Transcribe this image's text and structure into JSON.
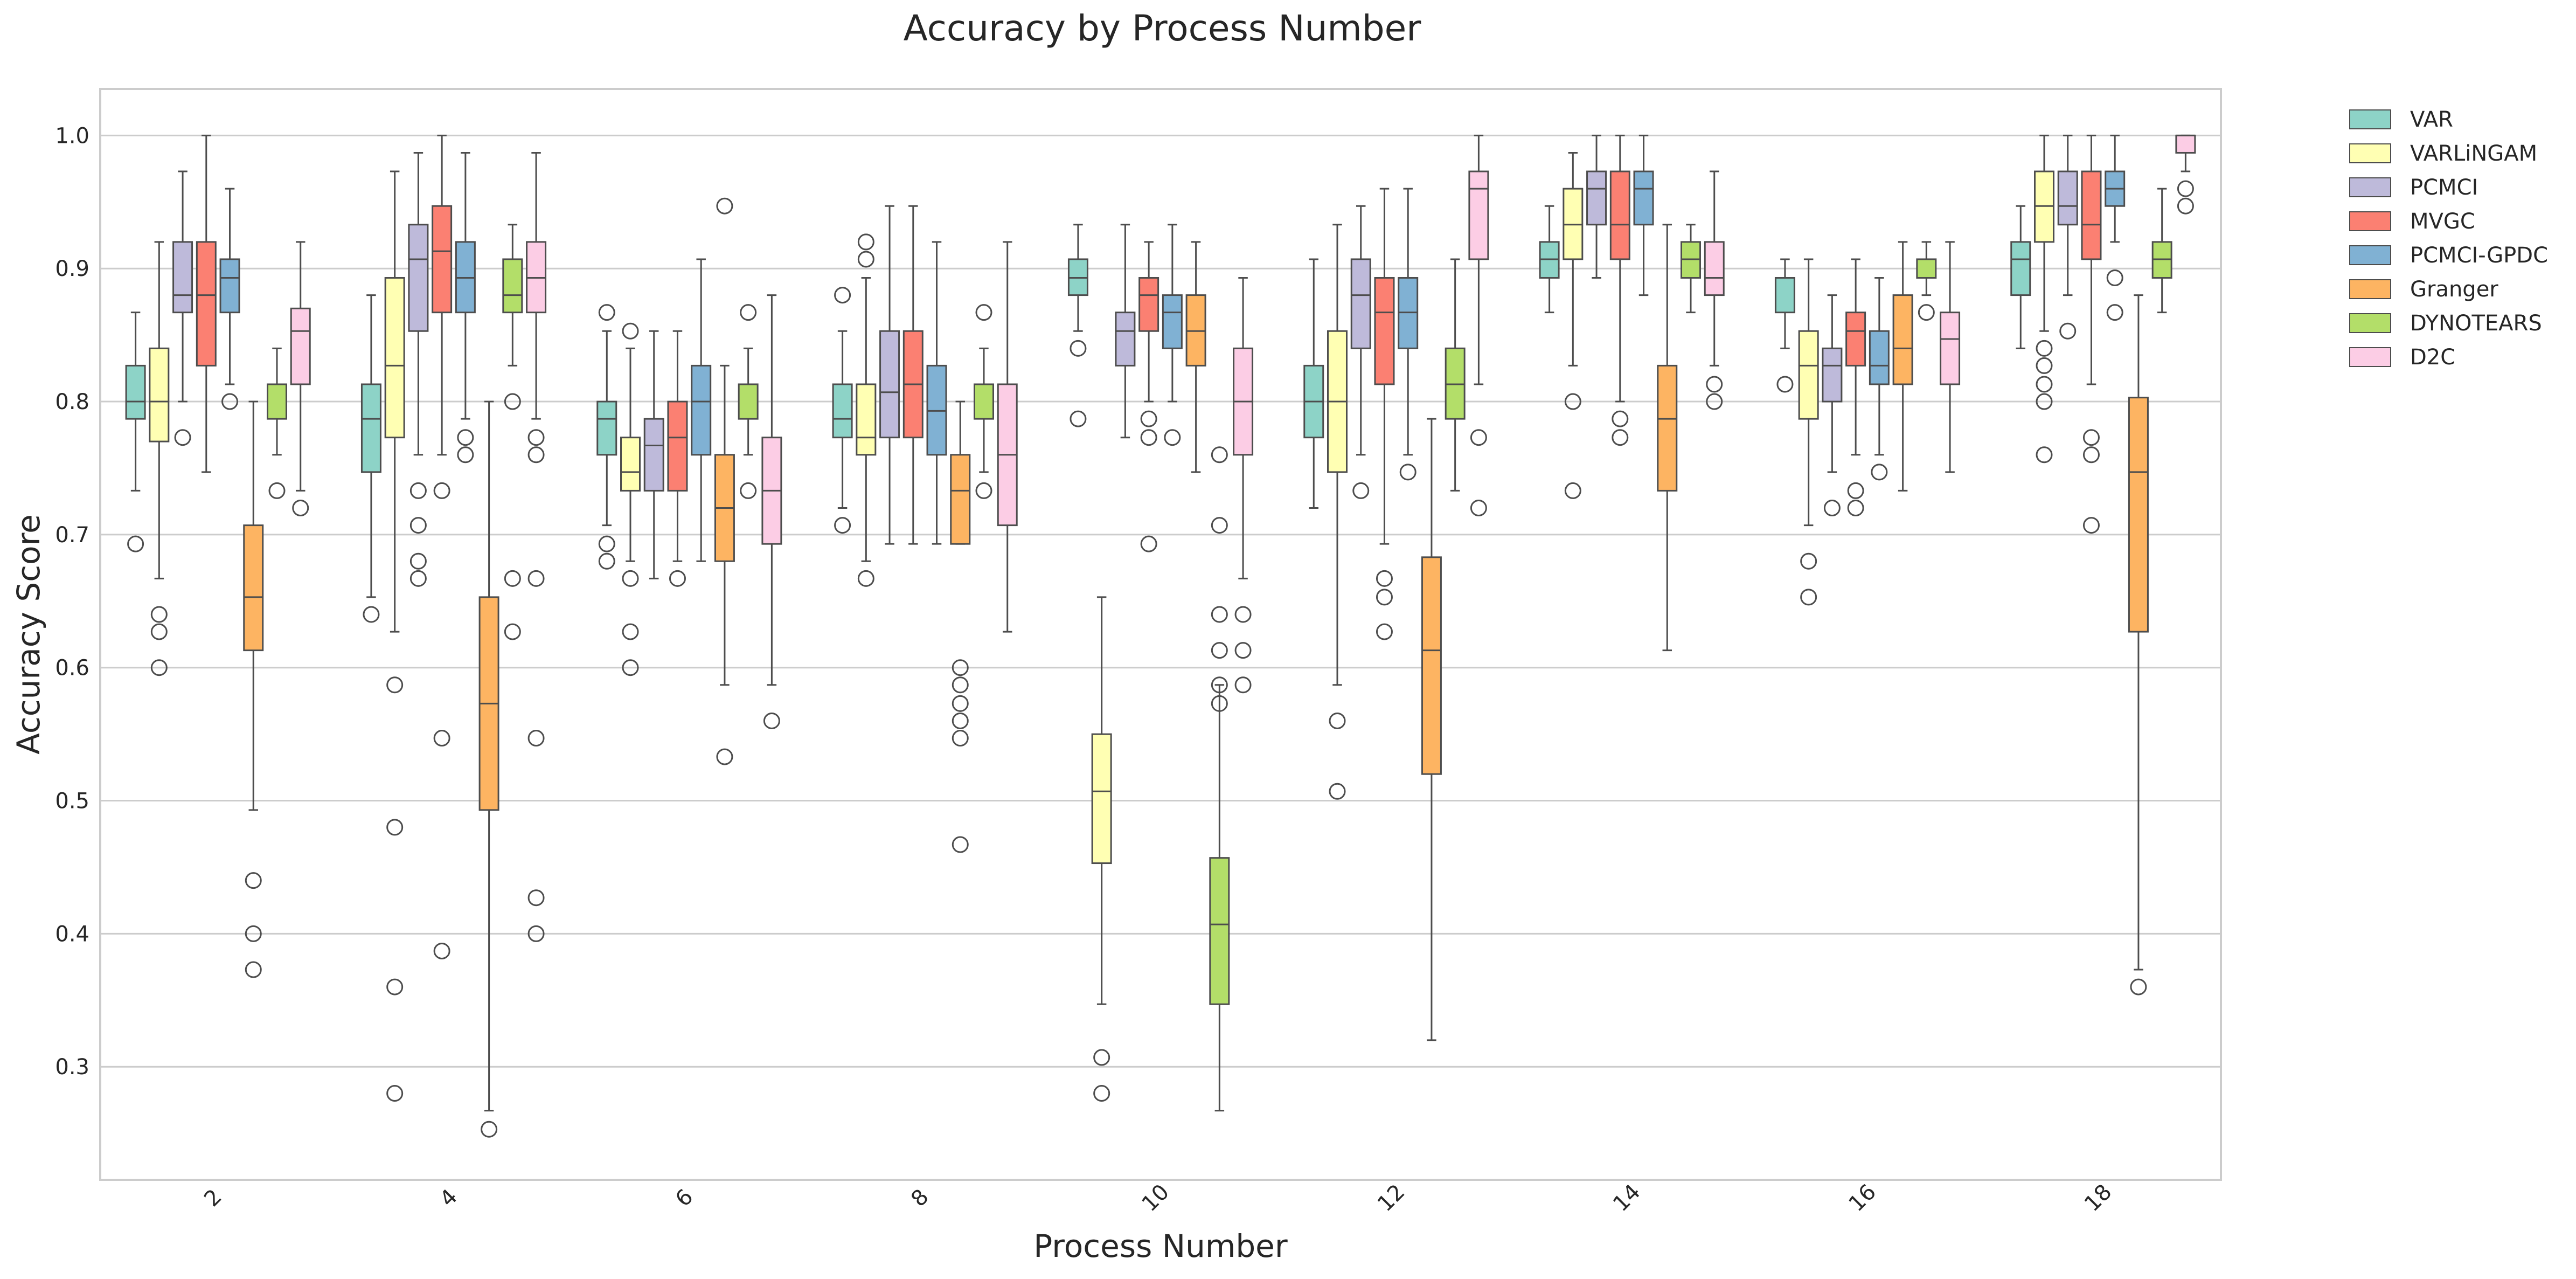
{
  "chart_data": {
    "type": "boxplot",
    "title": "Accuracy by Process Number",
    "xlabel": "Process Number",
    "ylabel": "Accuracy Score",
    "categories": [
      "2",
      "4",
      "6",
      "8",
      "10",
      "12",
      "14",
      "16",
      "18"
    ],
    "ylim": [
      0.215,
      1.035
    ],
    "yticks": [
      0.3,
      0.4,
      0.5,
      0.6,
      0.7,
      0.8,
      0.9,
      1.0
    ],
    "grid": "horizontal",
    "legend_position": "outside-top-right",
    "series": [
      {
        "name": "VAR",
        "color": "#8dd3c7",
        "boxes": [
          {
            "q1": 0.787,
            "median": 0.8,
            "q3": 0.827,
            "low": 0.733,
            "high": 0.867,
            "fliers": [
              0.693
            ]
          },
          {
            "q1": 0.747,
            "median": 0.787,
            "q3": 0.813,
            "low": 0.653,
            "high": 0.88,
            "fliers": [
              0.64
            ]
          },
          {
            "q1": 0.76,
            "median": 0.787,
            "q3": 0.8,
            "low": 0.707,
            "high": 0.853,
            "fliers": [
              0.867,
              0.693,
              0.68
            ]
          },
          {
            "q1": 0.773,
            "median": 0.787,
            "q3": 0.813,
            "low": 0.72,
            "high": 0.853,
            "fliers": [
              0.88,
              0.707
            ]
          },
          {
            "q1": 0.88,
            "median": 0.893,
            "q3": 0.907,
            "low": 0.853,
            "high": 0.933,
            "fliers": [
              0.84,
              0.787
            ]
          },
          {
            "q1": 0.773,
            "median": 0.8,
            "q3": 0.827,
            "low": 0.72,
            "high": 0.907,
            "fliers": []
          },
          {
            "q1": 0.893,
            "median": 0.907,
            "q3": 0.92,
            "low": 0.867,
            "high": 0.947,
            "fliers": []
          },
          {
            "q1": 0.867,
            "median": 0.893,
            "q3": 0.893,
            "low": 0.84,
            "high": 0.907,
            "fliers": [
              0.813
            ]
          },
          {
            "q1": 0.88,
            "median": 0.907,
            "q3": 0.92,
            "low": 0.84,
            "high": 0.947,
            "fliers": []
          }
        ]
      },
      {
        "name": "VARLiNGAM",
        "color": "#ffffb3",
        "boxes": [
          {
            "q1": 0.77,
            "median": 0.8,
            "q3": 0.84,
            "low": 0.667,
            "high": 0.92,
            "fliers": [
              0.64,
              0.627,
              0.6
            ]
          },
          {
            "q1": 0.773,
            "median": 0.827,
            "q3": 0.893,
            "low": 0.627,
            "high": 0.973,
            "fliers": [
              0.587,
              0.48,
              0.36,
              0.28
            ]
          },
          {
            "q1": 0.733,
            "median": 0.747,
            "q3": 0.773,
            "low": 0.68,
            "high": 0.84,
            "fliers": [
              0.853,
              0.667,
              0.627,
              0.6
            ]
          },
          {
            "q1": 0.76,
            "median": 0.773,
            "q3": 0.813,
            "low": 0.68,
            "high": 0.893,
            "fliers": [
              0.92,
              0.907,
              0.667
            ]
          },
          {
            "q1": 0.453,
            "median": 0.507,
            "q3": 0.55,
            "low": 0.347,
            "high": 0.653,
            "fliers": [
              0.307,
              0.28
            ]
          },
          {
            "q1": 0.747,
            "median": 0.8,
            "q3": 0.853,
            "low": 0.587,
            "high": 0.933,
            "fliers": [
              0.56,
              0.507
            ]
          },
          {
            "q1": 0.907,
            "median": 0.933,
            "q3": 0.96,
            "low": 0.827,
            "high": 0.987,
            "fliers": [
              0.8,
              0.733
            ]
          },
          {
            "q1": 0.787,
            "median": 0.827,
            "q3": 0.853,
            "low": 0.707,
            "high": 0.907,
            "fliers": [
              0.68,
              0.653
            ]
          },
          {
            "q1": 0.92,
            "median": 0.947,
            "q3": 0.973,
            "low": 0.853,
            "high": 1.0,
            "fliers": [
              0.84,
              0.827,
              0.813,
              0.8,
              0.76
            ]
          }
        ]
      },
      {
        "name": "PCMCI",
        "color": "#bebada",
        "boxes": [
          {
            "q1": 0.867,
            "median": 0.88,
            "q3": 0.92,
            "low": 0.8,
            "high": 0.973,
            "fliers": [
              0.773
            ]
          },
          {
            "q1": 0.853,
            "median": 0.907,
            "q3": 0.933,
            "low": 0.76,
            "high": 0.987,
            "fliers": [
              0.733,
              0.707,
              0.68,
              0.667
            ]
          },
          {
            "q1": 0.733,
            "median": 0.767,
            "q3": 0.787,
            "low": 0.667,
            "high": 0.853,
            "fliers": []
          },
          {
            "q1": 0.773,
            "median": 0.807,
            "q3": 0.853,
            "low": 0.693,
            "high": 0.947,
            "fliers": []
          },
          {
            "q1": 0.827,
            "median": 0.853,
            "q3": 0.867,
            "low": 0.773,
            "high": 0.933,
            "fliers": []
          },
          {
            "q1": 0.84,
            "median": 0.88,
            "q3": 0.907,
            "low": 0.76,
            "high": 0.947,
            "fliers": [
              0.733
            ]
          },
          {
            "q1": 0.933,
            "median": 0.96,
            "q3": 0.973,
            "low": 0.893,
            "high": 1.0,
            "fliers": []
          },
          {
            "q1": 0.8,
            "median": 0.827,
            "q3": 0.84,
            "low": 0.747,
            "high": 0.88,
            "fliers": [
              0.72
            ]
          },
          {
            "q1": 0.933,
            "median": 0.947,
            "q3": 0.973,
            "low": 0.88,
            "high": 1.0,
            "fliers": [
              0.853
            ]
          }
        ]
      },
      {
        "name": "MVGC",
        "color": "#fb8072",
        "boxes": [
          {
            "q1": 0.827,
            "median": 0.88,
            "q3": 0.92,
            "low": 0.747,
            "high": 1.0,
            "fliers": []
          },
          {
            "q1": 0.867,
            "median": 0.913,
            "q3": 0.947,
            "low": 0.76,
            "high": 1.0,
            "fliers": [
              0.733,
              0.547,
              0.387
            ]
          },
          {
            "q1": 0.733,
            "median": 0.773,
            "q3": 0.8,
            "low": 0.68,
            "high": 0.853,
            "fliers": [
              0.667
            ]
          },
          {
            "q1": 0.773,
            "median": 0.813,
            "q3": 0.853,
            "low": 0.693,
            "high": 0.947,
            "fliers": []
          },
          {
            "q1": 0.853,
            "median": 0.88,
            "q3": 0.893,
            "low": 0.8,
            "high": 0.92,
            "fliers": [
              0.787,
              0.773,
              0.693
            ]
          },
          {
            "q1": 0.813,
            "median": 0.867,
            "q3": 0.893,
            "low": 0.693,
            "high": 0.96,
            "fliers": [
              0.667,
              0.653,
              0.627
            ]
          },
          {
            "q1": 0.907,
            "median": 0.933,
            "q3": 0.973,
            "low": 0.8,
            "high": 1.0,
            "fliers": [
              0.787,
              0.773
            ]
          },
          {
            "q1": 0.827,
            "median": 0.853,
            "q3": 0.867,
            "low": 0.76,
            "high": 0.907,
            "fliers": [
              0.733,
              0.72
            ]
          },
          {
            "q1": 0.907,
            "median": 0.933,
            "q3": 0.973,
            "low": 0.813,
            "high": 1.0,
            "fliers": [
              0.773,
              0.76,
              0.707
            ]
          }
        ]
      },
      {
        "name": "PCMCI-GPDC",
        "color": "#80b1d3",
        "boxes": [
          {
            "q1": 0.867,
            "median": 0.893,
            "q3": 0.907,
            "low": 0.813,
            "high": 0.96,
            "fliers": [
              0.8
            ]
          },
          {
            "q1": 0.867,
            "median": 0.893,
            "q3": 0.92,
            "low": 0.787,
            "high": 0.987,
            "fliers": [
              0.773,
              0.76
            ]
          },
          {
            "q1": 0.76,
            "median": 0.8,
            "q3": 0.827,
            "low": 0.68,
            "high": 0.907,
            "fliers": []
          },
          {
            "q1": 0.76,
            "median": 0.793,
            "q3": 0.827,
            "low": 0.693,
            "high": 0.92,
            "fliers": []
          },
          {
            "q1": 0.84,
            "median": 0.867,
            "q3": 0.88,
            "low": 0.8,
            "high": 0.933,
            "fliers": [
              0.773
            ]
          },
          {
            "q1": 0.84,
            "median": 0.867,
            "q3": 0.893,
            "low": 0.76,
            "high": 0.96,
            "fliers": [
              0.747
            ]
          },
          {
            "q1": 0.933,
            "median": 0.96,
            "q3": 0.973,
            "low": 0.88,
            "high": 1.0,
            "fliers": []
          },
          {
            "q1": 0.813,
            "median": 0.827,
            "q3": 0.853,
            "low": 0.76,
            "high": 0.893,
            "fliers": [
              0.747
            ]
          },
          {
            "q1": 0.947,
            "median": 0.96,
            "q3": 0.973,
            "low": 0.92,
            "high": 1.0,
            "fliers": [
              0.893,
              0.867
            ]
          }
        ]
      },
      {
        "name": "Granger",
        "color": "#fdb462",
        "boxes": [
          {
            "q1": 0.613,
            "median": 0.653,
            "q3": 0.707,
            "low": 0.493,
            "high": 0.8,
            "fliers": [
              0.44,
              0.4,
              0.373
            ]
          },
          {
            "q1": 0.493,
            "median": 0.573,
            "q3": 0.653,
            "low": 0.267,
            "high": 0.8,
            "fliers": [
              0.253
            ]
          },
          {
            "q1": 0.68,
            "median": 0.72,
            "q3": 0.76,
            "low": 0.587,
            "high": 0.827,
            "fliers": [
              0.947,
              0.533
            ]
          },
          {
            "q1": 0.693,
            "median": 0.733,
            "q3": 0.76,
            "low": 0.693,
            "high": 0.8,
            "fliers": [
              0.6,
              0.587,
              0.573,
              0.56,
              0.547,
              0.467
            ]
          },
          {
            "q1": 0.827,
            "median": 0.853,
            "q3": 0.88,
            "low": 0.747,
            "high": 0.92,
            "fliers": []
          },
          {
            "q1": 0.52,
            "median": 0.613,
            "q3": 0.683,
            "low": 0.32,
            "high": 0.787,
            "fliers": []
          },
          {
            "q1": 0.733,
            "median": 0.787,
            "q3": 0.827,
            "low": 0.613,
            "high": 0.933,
            "fliers": []
          },
          {
            "q1": 0.813,
            "median": 0.84,
            "q3": 0.88,
            "low": 0.733,
            "high": 0.92,
            "fliers": []
          },
          {
            "q1": 0.627,
            "median": 0.747,
            "q3": 0.803,
            "low": 0.373,
            "high": 0.88,
            "fliers": [
              0.36
            ]
          }
        ]
      },
      {
        "name": "DYNOTEARS",
        "color": "#b3de69",
        "boxes": [
          {
            "q1": 0.787,
            "median": 0.813,
            "q3": 0.813,
            "low": 0.76,
            "high": 0.84,
            "fliers": [
              0.733
            ]
          },
          {
            "q1": 0.867,
            "median": 0.88,
            "q3": 0.907,
            "low": 0.827,
            "high": 0.933,
            "fliers": [
              0.8,
              0.667,
              0.627
            ]
          },
          {
            "q1": 0.787,
            "median": 0.813,
            "q3": 0.813,
            "low": 0.76,
            "high": 0.84,
            "fliers": [
              0.867,
              0.733
            ]
          },
          {
            "q1": 0.787,
            "median": 0.813,
            "q3": 0.813,
            "low": 0.747,
            "high": 0.84,
            "fliers": [
              0.867,
              0.733
            ]
          },
          {
            "q1": 0.347,
            "median": 0.407,
            "q3": 0.457,
            "low": 0.267,
            "high": 0.587,
            "fliers": [
              0.76,
              0.707,
              0.64,
              0.613,
              0.587,
              0.573
            ]
          },
          {
            "q1": 0.787,
            "median": 0.813,
            "q3": 0.84,
            "low": 0.733,
            "high": 0.907,
            "fliers": []
          },
          {
            "q1": 0.893,
            "median": 0.907,
            "q3": 0.92,
            "low": 0.867,
            "high": 0.933,
            "fliers": []
          },
          {
            "q1": 0.893,
            "median": 0.907,
            "q3": 0.907,
            "low": 0.88,
            "high": 0.92,
            "fliers": [
              0.867
            ]
          },
          {
            "q1": 0.893,
            "median": 0.907,
            "q3": 0.92,
            "low": 0.867,
            "high": 0.96,
            "fliers": []
          }
        ]
      },
      {
        "name": "D2C",
        "color": "#fccde5",
        "boxes": [
          {
            "q1": 0.813,
            "median": 0.853,
            "q3": 0.87,
            "low": 0.733,
            "high": 0.92,
            "fliers": [
              0.72
            ]
          },
          {
            "q1": 0.867,
            "median": 0.893,
            "q3": 0.92,
            "low": 0.787,
            "high": 0.987,
            "fliers": [
              0.773,
              0.76,
              0.667,
              0.547,
              0.427,
              0.4
            ]
          },
          {
            "q1": 0.693,
            "median": 0.733,
            "q3": 0.773,
            "low": 0.587,
            "high": 0.88,
            "fliers": [
              0.56
            ]
          },
          {
            "q1": 0.707,
            "median": 0.76,
            "q3": 0.813,
            "low": 0.627,
            "high": 0.92,
            "fliers": []
          },
          {
            "q1": 0.76,
            "median": 0.8,
            "q3": 0.84,
            "low": 0.667,
            "high": 0.893,
            "fliers": [
              0.64,
              0.613,
              0.587
            ]
          },
          {
            "q1": 0.907,
            "median": 0.96,
            "q3": 0.973,
            "low": 0.813,
            "high": 1.0,
            "fliers": [
              0.773,
              0.72
            ]
          },
          {
            "q1": 0.88,
            "median": 0.893,
            "q3": 0.92,
            "low": 0.827,
            "high": 0.973,
            "fliers": [
              0.813,
              0.8
            ]
          },
          {
            "q1": 0.813,
            "median": 0.847,
            "q3": 0.867,
            "low": 0.747,
            "high": 0.92,
            "fliers": []
          },
          {
            "q1": 0.987,
            "median": 1.0,
            "q3": 1.0,
            "low": 0.973,
            "high": 1.0,
            "fliers": [
              0.96,
              0.947
            ]
          }
        ]
      }
    ]
  }
}
